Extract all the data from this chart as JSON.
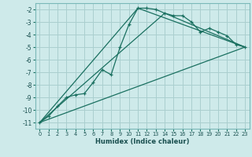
{
  "xlabel": "Humidex (Indice chaleur)",
  "bg_color": "#ceeaea",
  "grid_color": "#aacfcf",
  "line_color": "#1a7060",
  "xlim": [
    -0.5,
    23.5
  ],
  "ylim": [
    -11.5,
    -1.5
  ],
  "yticks": [
    -11,
    -10,
    -9,
    -8,
    -7,
    -6,
    -5,
    -4,
    -3,
    -2
  ],
  "xticks": [
    0,
    1,
    2,
    3,
    4,
    5,
    6,
    7,
    8,
    9,
    10,
    11,
    12,
    13,
    14,
    15,
    16,
    17,
    18,
    19,
    20,
    21,
    22,
    23
  ],
  "main_series": [
    [
      0,
      -11
    ],
    [
      1,
      -10.5
    ],
    [
      2,
      -9.7
    ],
    [
      3,
      -9.0
    ],
    [
      4,
      -8.8
    ],
    [
      5,
      -8.7
    ],
    [
      6,
      -7.8
    ],
    [
      7,
      -6.8
    ],
    [
      8,
      -7.2
    ],
    [
      9,
      -5.0
    ],
    [
      10,
      -3.2
    ],
    [
      11,
      -1.9
    ],
    [
      12,
      -1.9
    ],
    [
      13,
      -2.0
    ],
    [
      14,
      -2.3
    ],
    [
      15,
      -2.5
    ],
    [
      16,
      -2.5
    ],
    [
      17,
      -3.0
    ],
    [
      18,
      -3.8
    ],
    [
      19,
      -3.5
    ],
    [
      20,
      -3.8
    ],
    [
      21,
      -4.1
    ],
    [
      22,
      -4.8
    ],
    [
      23,
      -5.0
    ]
  ],
  "line1": [
    [
      0,
      -11
    ],
    [
      23,
      -5.0
    ]
  ],
  "line2": [
    [
      0,
      -11
    ],
    [
      11,
      -1.9
    ],
    [
      23,
      -5.0
    ]
  ],
  "line3": [
    [
      0,
      -11
    ],
    [
      14,
      -2.3
    ],
    [
      23,
      -5.0
    ]
  ]
}
